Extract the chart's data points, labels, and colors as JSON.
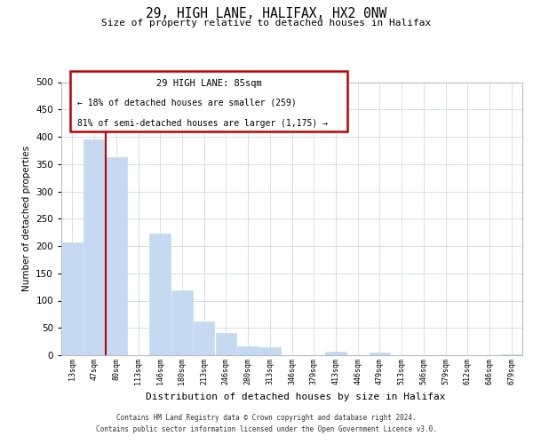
{
  "title": "29, HIGH LANE, HALIFAX, HX2 0NW",
  "subtitle": "Size of property relative to detached houses in Halifax",
  "xlabel": "Distribution of detached houses by size in Halifax",
  "ylabel": "Number of detached properties",
  "categories": [
    "13sqm",
    "47sqm",
    "80sqm",
    "113sqm",
    "146sqm",
    "180sqm",
    "213sqm",
    "246sqm",
    "280sqm",
    "313sqm",
    "346sqm",
    "379sqm",
    "413sqm",
    "446sqm",
    "479sqm",
    "513sqm",
    "546sqm",
    "579sqm",
    "612sqm",
    "646sqm",
    "679sqm"
  ],
  "values": [
    207,
    395,
    362,
    0,
    222,
    118,
    62,
    40,
    16,
    14,
    0,
    0,
    7,
    0,
    5,
    0,
    0,
    0,
    0,
    0,
    2
  ],
  "bar_color": "#c5d9f0",
  "highlight_color": "#c00000",
  "highlight_index": 2,
  "annotation_title": "29 HIGH LANE: 85sqm",
  "annotation_line1": "← 18% of detached houses are smaller (259)",
  "annotation_line2": "81% of semi-detached houses are larger (1,175) →",
  "ylim": [
    0,
    500
  ],
  "yticks": [
    0,
    50,
    100,
    150,
    200,
    250,
    300,
    350,
    400,
    450,
    500
  ],
  "footer_line1": "Contains HM Land Registry data © Crown copyright and database right 2024.",
  "footer_line2": "Contains public sector information licensed under the Open Government Licence v3.0.",
  "background_color": "#ffffff",
  "grid_color": "#d0d8e4"
}
